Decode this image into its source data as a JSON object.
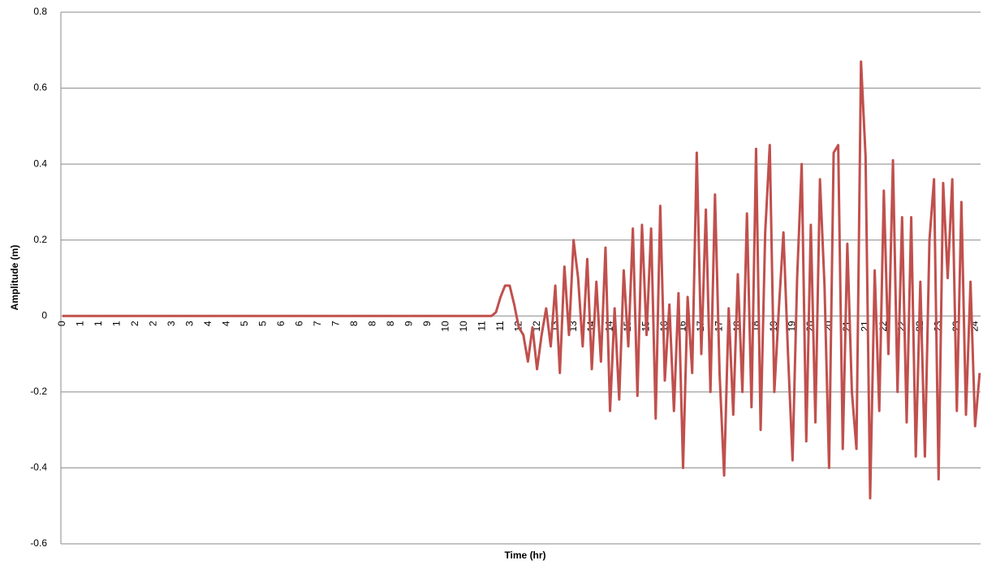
{
  "chart_data": {
    "type": "line",
    "x_label": "Time (hr)",
    "y_label": "Amplitude (m)",
    "categories": [
      "0",
      null,
      null,
      null,
      "1",
      null,
      null,
      null,
      "1",
      null,
      null,
      null,
      "1",
      null,
      null,
      null,
      "2",
      null,
      null,
      null,
      "2",
      null,
      null,
      null,
      "3",
      null,
      null,
      null,
      "3",
      null,
      null,
      null,
      "4",
      null,
      null,
      null,
      "4",
      null,
      null,
      null,
      "5",
      null,
      null,
      null,
      "5",
      null,
      null,
      null,
      "6",
      null,
      null,
      null,
      "6",
      null,
      null,
      null,
      "7",
      null,
      null,
      null,
      "7",
      null,
      null,
      null,
      "8",
      null,
      null,
      null,
      "8",
      null,
      null,
      null,
      "8",
      null,
      null,
      null,
      "9",
      null,
      null,
      null,
      "9",
      null,
      null,
      null,
      "10",
      null,
      null,
      null,
      "10",
      null,
      null,
      null,
      "11",
      null,
      null,
      null,
      "11",
      null,
      null,
      null,
      "12",
      null,
      null,
      null,
      "12",
      null,
      null,
      null,
      "13",
      null,
      null,
      null,
      "13",
      null,
      null,
      null,
      "14",
      null,
      null,
      null,
      "14",
      null,
      null,
      null,
      "15",
      null,
      null,
      null,
      "15",
      null,
      null,
      null,
      "16",
      null,
      null,
      null,
      "16",
      null,
      null,
      null,
      "17",
      null,
      null,
      null,
      "17",
      null,
      null,
      null,
      "18",
      null,
      null,
      null,
      "18",
      null,
      null,
      null,
      "19",
      null,
      null,
      null,
      "19",
      null,
      null,
      null,
      "20",
      null,
      null,
      null,
      "20",
      null,
      null,
      null,
      "21",
      null,
      null,
      null,
      "21",
      null,
      null,
      null,
      "22",
      null,
      null,
      null,
      "22",
      null,
      null,
      null,
      "22",
      null,
      null,
      null,
      "23",
      null,
      null,
      null,
      "23",
      null,
      null,
      null,
      "24",
      null
    ],
    "series": [
      {
        "color": "#c0504d",
        "values": [
          0,
          0,
          0,
          0,
          0,
          0,
          0,
          0,
          0,
          0,
          0,
          0,
          0,
          0,
          0,
          0,
          0,
          0,
          0,
          0,
          0,
          0,
          0,
          0,
          0,
          0,
          0,
          0,
          0,
          0,
          0,
          0,
          0,
          0,
          0,
          0,
          0,
          0,
          0,
          0,
          0,
          0,
          0,
          0,
          0,
          0,
          0,
          0,
          0,
          0,
          0,
          0,
          0,
          0,
          0,
          0,
          0,
          0,
          0,
          0,
          0,
          0,
          0,
          0,
          0,
          0,
          0,
          0,
          0,
          0,
          0,
          0,
          0,
          0,
          0,
          0,
          0,
          0,
          0,
          0,
          0,
          0,
          0,
          0,
          0,
          0,
          0,
          0,
          0,
          0,
          0,
          0,
          0,
          0,
          0,
          0.01,
          0.05,
          0.08,
          0.08,
          0.03,
          -0.03,
          -0.05,
          -0.12,
          -0.03,
          -0.14,
          -0.05,
          0.02,
          -0.08,
          0.08,
          -0.15,
          0.13,
          -0.05,
          0.2,
          0.1,
          -0.08,
          0.15,
          -0.14,
          0.09,
          -0.12,
          0.18,
          -0.25,
          0.02,
          -0.22,
          0.12,
          -0.08,
          0.23,
          -0.21,
          0.24,
          -0.05,
          0.23,
          -0.27,
          0.29,
          -0.17,
          0.03,
          -0.25,
          0.06,
          -0.4,
          0.05,
          -0.15,
          0.43,
          -0.1,
          0.28,
          -0.2,
          0.32,
          -0.15,
          -0.42,
          0.02,
          -0.26,
          0.11,
          -0.2,
          0.27,
          -0.24,
          0.44,
          -0.3,
          0.22,
          0.45,
          -0.2,
          0.02,
          0.22,
          -0.1,
          -0.38,
          0.1,
          0.4,
          -0.33,
          0.24,
          -0.28,
          0.36,
          0.08,
          -0.4,
          0.43,
          0.45,
          -0.35,
          0.19,
          -0.2,
          -0.35,
          0.67,
          0.42,
          -0.48,
          0.12,
          -0.25,
          0.33,
          -0.1,
          0.41,
          -0.2,
          0.26,
          -0.28,
          0.26,
          -0.37,
          0.09,
          -0.37,
          0.2,
          0.36,
          -0.43,
          0.35,
          0.1,
          0.36,
          -0.25,
          0.3,
          -0.26,
          0.09,
          -0.29,
          -0.15
        ]
      }
    ],
    "ylim": [
      -0.6,
      0.8
    ],
    "yticks": [
      -0.6,
      -0.4,
      -0.2,
      0,
      0.2,
      0.4,
      0.6,
      0.8
    ],
    "grid": true
  }
}
